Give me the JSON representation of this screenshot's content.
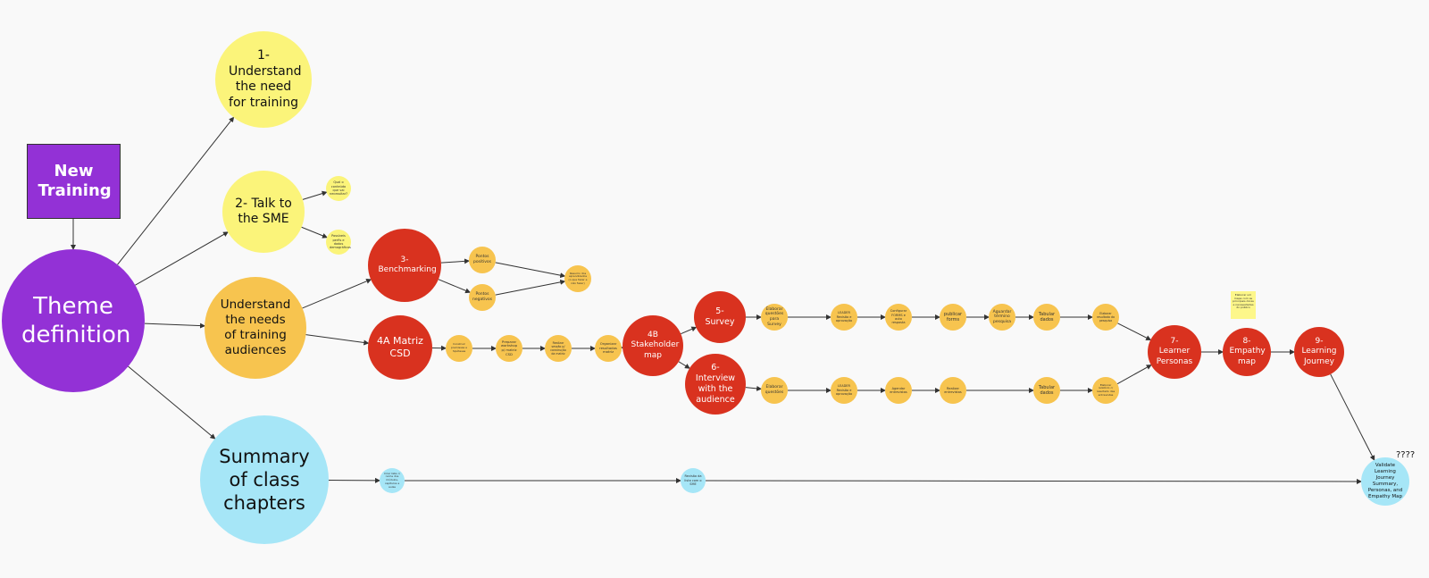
{
  "nodes": [
    {
      "label": "New Training"
    },
    {
      "label": "Theme definition"
    },
    {
      "label": "1- Understand the need for training"
    },
    {
      "label": "2- Talk to the SME"
    },
    {
      "label": "Qual o conteúdo que vai necessitar?"
    },
    {
      "label": "Possíveis perfis e dados demográficos"
    },
    {
      "label": "Understand the needs of training audiences"
    },
    {
      "label": "Summary of class chapters"
    },
    {
      "label": "3- Benchmarking"
    },
    {
      "label": "Pontos positivos"
    },
    {
      "label": "Pontos negativos"
    },
    {
      "label": "Resumo dos aprendizados (o que fazer e não fazer)"
    },
    {
      "label": "4A Matriz CSD"
    },
    {
      "label": "Construir premissas e hipóteses"
    },
    {
      "label": "Preparar workshop p/ matriz CSD"
    },
    {
      "label": "Realizar sessão p/ construção da matriz"
    },
    {
      "label": "Organizar resultados matriz"
    },
    {
      "label": "4B Stakeholder map"
    },
    {
      "label": "5- Survey"
    },
    {
      "label": "Elaborar questões para Survey"
    },
    {
      "label": "LEADER Revisão e aprovação"
    },
    {
      "label": "Configurar FORMS e auto resposta"
    },
    {
      "label": "publicar forms"
    },
    {
      "label": "Aguardar término pesquisa"
    },
    {
      "label": "Tabular dados"
    },
    {
      "label": "Elaborar resultado da pesquisa"
    },
    {
      "label": "6- Interview with the audience"
    },
    {
      "label": "Elaborar questões"
    },
    {
      "label": "LEADER Revisão e aprovação"
    },
    {
      "label": "Agendar entrevistas"
    },
    {
      "label": "Realizar entrevistas"
    },
    {
      "label": "Tabular dados"
    },
    {
      "label": "Elaborar relatório c/ resultado das entrevistas"
    },
    {
      "label": "7- Learner Personas"
    },
    {
      "label": "8- Empathy map"
    },
    {
      "label": "9- Learning Journey"
    },
    {
      "label": "Criar lista c/ nome dos módulos, capítulos e aulas"
    },
    {
      "label": "Revisão da lista com o SME"
    },
    {
      "label": "Validate Learning Journey Summary, Personas, and Empathy Map"
    }
  ],
  "sticky_note": "Elaborar um mapa com as principais dores e necessidades do público",
  "question_mark": "????"
}
